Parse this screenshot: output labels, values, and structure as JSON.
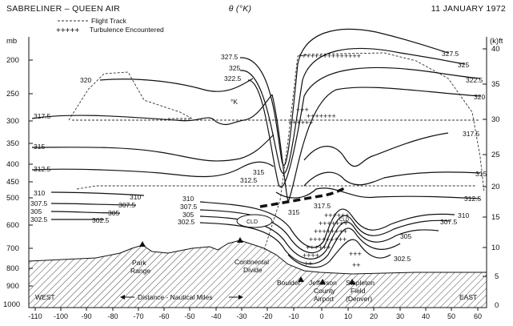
{
  "header": {
    "left_title": "SABRELINER – QUEEN AIR",
    "center_title": "θ (°K)",
    "right_title": "11 JANUARY 1972"
  },
  "legend": {
    "flight_track": "Flight Track",
    "turbulence": "Turbulence Encountered"
  },
  "axes": {
    "left_unit": "mb",
    "right_unit": "(k)ft",
    "left_ticks": [
      "200",
      "250",
      "300",
      "350",
      "400",
      "450",
      "500",
      "600",
      "700",
      "800",
      "900",
      "1000"
    ],
    "right_ticks": [
      "40",
      "35",
      "30",
      "25",
      "20",
      "15",
      "10",
      "5",
      "0"
    ],
    "bottom_ticks": [
      "-110",
      "-100",
      "-90",
      "-80",
      "-70",
      "-60",
      "-50",
      "-40",
      "-30",
      "-20",
      "-10",
      "0",
      "10",
      "20",
      "30",
      "40",
      "50",
      "60"
    ],
    "bottom_label": "Distance - Nautical Miles",
    "west": "WEST",
    "east": "EAST"
  },
  "isentropes": {
    "unit_mark": "°K",
    "left": [
      "320",
      "317.5",
      "315",
      "312.5",
      "310",
      "307.5",
      "305",
      "302.5"
    ],
    "mid_left": [
      "310",
      "307.5",
      "305",
      "302.5"
    ],
    "center": [
      "315",
      "312.5",
      "315",
      "317.5"
    ],
    "right": [
      "327.5",
      "325",
      "322.5",
      "320",
      "317.5",
      "315",
      "312.5",
      "310",
      "307.5",
      "305",
      "302.5"
    ],
    "top": [
      "327.5",
      "325",
      "322.5"
    ],
    "cloud": "CLD"
  },
  "places": {
    "park_range": [
      "Park",
      "Range"
    ],
    "continental_divide": [
      "Continental",
      "Divide"
    ],
    "boulder": "Boulder",
    "jefferson": [
      "Jefferson",
      "County",
      "Airport"
    ],
    "stapleton": [
      "Stapleton",
      "Field",
      "(Denver)"
    ]
  }
}
